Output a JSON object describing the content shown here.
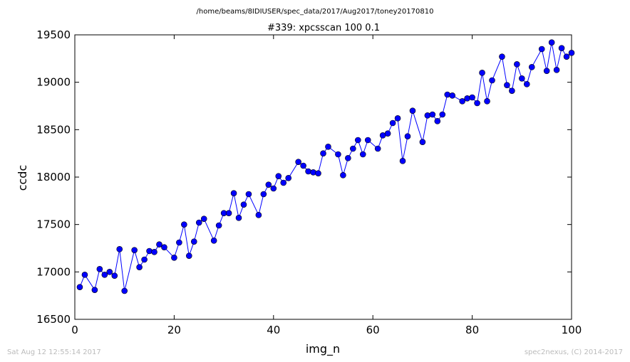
{
  "header": {
    "path": "/home/beams/8IDIUSER/spec_data/2017/Aug2017/toney20170810"
  },
  "footer": {
    "timestamp": "Sat Aug 12 12:55:14 2017",
    "credit": "spec2nexus, (C) 2014-2017"
  },
  "chart_data": {
    "type": "line",
    "title": "#339: xpcsscan 100 0.1",
    "xlabel": "img_n",
    "ylabel": "ccdc",
    "xlim": [
      0,
      100
    ],
    "ylim": [
      16500,
      19500
    ],
    "xticks": [
      0,
      20,
      40,
      60,
      80,
      100
    ],
    "yticks": [
      16500,
      17000,
      17500,
      18000,
      18500,
      19000,
      19500
    ],
    "grid": false,
    "marker": "circle",
    "color": "#0000ff",
    "marker_color": "#0000ff",
    "x": [
      1,
      2,
      4,
      5,
      6,
      7,
      8,
      9,
      10,
      12,
      13,
      14,
      15,
      16,
      17,
      18,
      20,
      21,
      22,
      23,
      24,
      25,
      26,
      28,
      29,
      30,
      31,
      32,
      33,
      34,
      35,
      37,
      38,
      39,
      40,
      41,
      42,
      43,
      45,
      46,
      47,
      48,
      49,
      50,
      51,
      53,
      54,
      55,
      56,
      57,
      58,
      59,
      61,
      62,
      63,
      64,
      65,
      66,
      67,
      68,
      70,
      71,
      72,
      73,
      74,
      75,
      76,
      78,
      79,
      80,
      81,
      82,
      83,
      84,
      86,
      87,
      88,
      89,
      90,
      91,
      92,
      94,
      95,
      96,
      97,
      98,
      99,
      100
    ],
    "y": [
      16840,
      16970,
      16810,
      17030,
      16970,
      17000,
      16960,
      17240,
      16800,
      17230,
      17050,
      17130,
      17220,
      17210,
      17290,
      17260,
      17150,
      17310,
      17500,
      17170,
      17320,
      17520,
      17560,
      17330,
      17490,
      17620,
      17620,
      17830,
      17570,
      17710,
      17820,
      17600,
      17820,
      17920,
      17880,
      18010,
      17940,
      17990,
      18160,
      18120,
      18060,
      18050,
      18040,
      18250,
      18320,
      18240,
      18020,
      18200,
      18300,
      18390,
      18240,
      18390,
      18300,
      18440,
      18460,
      18570,
      18620,
      18170,
      18430,
      18700,
      18370,
      18650,
      18660,
      18590,
      18660,
      18870,
      18860,
      18800,
      18830,
      18840,
      18780,
      19100,
      18800,
      19020,
      19270,
      18970,
      18910,
      19190,
      19040,
      18980,
      19160,
      19350,
      19120,
      19420,
      19130,
      19360,
      19270,
      19310
    ]
  }
}
